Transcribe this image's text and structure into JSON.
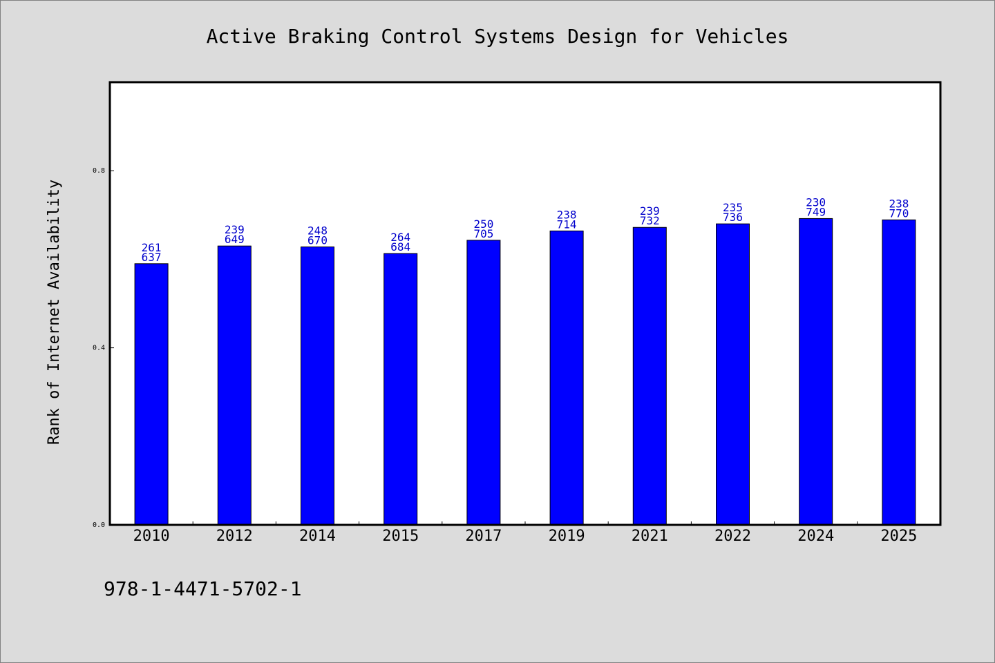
{
  "chart_data": {
    "type": "bar",
    "title": "Active Braking Control Systems Design for Vehicles",
    "ylabel": "Rank of Internet Availability",
    "xlabel": "",
    "categories": [
      "2010",
      "2012",
      "2014",
      "2015",
      "2017",
      "2019",
      "2021",
      "2022",
      "2024",
      "2025"
    ],
    "values": [
      0.59,
      0.63,
      0.628,
      0.613,
      0.643,
      0.664,
      0.672,
      0.68,
      0.692,
      0.689
    ],
    "label_top": [
      "261",
      "239",
      "248",
      "264",
      "250",
      "238",
      "239",
      "235",
      "230",
      "238"
    ],
    "label_bottom": [
      "637",
      "649",
      "670",
      "684",
      "705",
      "714",
      "732",
      "736",
      "749",
      "770"
    ],
    "ylim": [
      0,
      1.0
    ],
    "yticks": [
      0.0,
      0.4,
      0.8
    ],
    "ytick_labels": [
      "0.0",
      "0.4",
      "0.8"
    ],
    "bar_color": "#0000ff",
    "label_color": "#0000cc",
    "grid": false,
    "legend": "none"
  },
  "footer": {
    "isbn": "978-1-4471-5702-1"
  }
}
